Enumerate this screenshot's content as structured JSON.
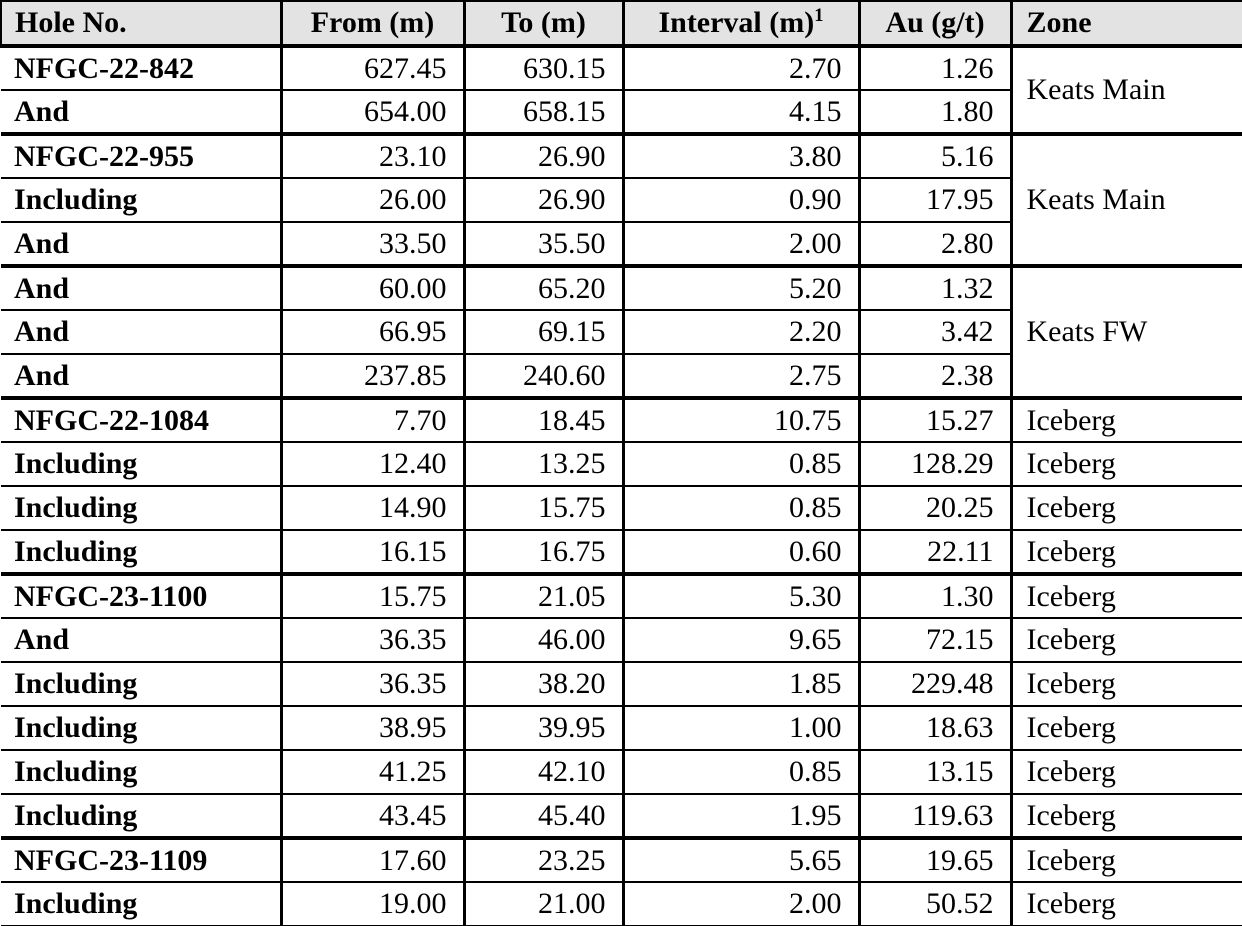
{
  "table": {
    "columns": [
      {
        "label": "Hole No."
      },
      {
        "label": "From (m)"
      },
      {
        "label": "To (m)"
      },
      {
        "label": "Interval (m)",
        "sup": "1"
      },
      {
        "label": "Au (g/t)"
      },
      {
        "label": "Zone"
      }
    ],
    "rows": [
      {
        "hole": "NFGC-22-842",
        "from": "627.45",
        "to": "630.15",
        "interval": "2.70",
        "au": "1.26",
        "zone": "Keats Main",
        "zone_span": 2,
        "group_end": false
      },
      {
        "hole": "And",
        "from": "654.00",
        "to": "658.15",
        "interval": "4.15",
        "au": "1.80",
        "group_end": true
      },
      {
        "hole": "NFGC-22-955",
        "from": "23.10",
        "to": "26.90",
        "interval": "3.80",
        "au": "5.16",
        "zone": "Keats Main",
        "zone_span": 3,
        "group_end": false
      },
      {
        "hole": "Including",
        "from": "26.00",
        "to": "26.90",
        "interval": "0.90",
        "au": "17.95",
        "group_end": false
      },
      {
        "hole": "And",
        "from": "33.50",
        "to": "35.50",
        "interval": "2.00",
        "au": "2.80",
        "group_end": true
      },
      {
        "hole": "And",
        "from": "60.00",
        "to": "65.20",
        "interval": "5.20",
        "au": "1.32",
        "zone": "Keats FW",
        "zone_span": 3,
        "group_end": false
      },
      {
        "hole": "And",
        "from": "66.95",
        "to": "69.15",
        "interval": "2.20",
        "au": "3.42",
        "group_end": false
      },
      {
        "hole": "And",
        "from": "237.85",
        "to": "240.60",
        "interval": "2.75",
        "au": "2.38",
        "group_end": true
      },
      {
        "hole": "NFGC-22-1084",
        "from": "7.70",
        "to": "18.45",
        "interval": "10.75",
        "au": "15.27",
        "zone": "Iceberg",
        "zone_span": 1,
        "group_end": false
      },
      {
        "hole": "Including",
        "from": "12.40",
        "to": "13.25",
        "interval": "0.85",
        "au": "128.29",
        "zone": "Iceberg",
        "zone_span": 1,
        "group_end": false
      },
      {
        "hole": "Including",
        "from": "14.90",
        "to": "15.75",
        "interval": "0.85",
        "au": "20.25",
        "zone": "Iceberg",
        "zone_span": 1,
        "group_end": false
      },
      {
        "hole": "Including",
        "from": "16.15",
        "to": "16.75",
        "interval": "0.60",
        "au": "22.11",
        "zone": "Iceberg",
        "zone_span": 1,
        "group_end": true
      },
      {
        "hole": "NFGC-23-1100",
        "from": "15.75",
        "to": "21.05",
        "interval": "5.30",
        "au": "1.30",
        "zone": "Iceberg",
        "zone_span": 1,
        "group_end": false
      },
      {
        "hole": "And",
        "from": "36.35",
        "to": "46.00",
        "interval": "9.65",
        "au": "72.15",
        "zone": "Iceberg",
        "zone_span": 1,
        "group_end": false
      },
      {
        "hole": "Including",
        "from": "36.35",
        "to": "38.20",
        "interval": "1.85",
        "au": "229.48",
        "zone": "Iceberg",
        "zone_span": 1,
        "group_end": false
      },
      {
        "hole": "Including",
        "from": "38.95",
        "to": "39.95",
        "interval": "1.00",
        "au": "18.63",
        "zone": "Iceberg",
        "zone_span": 1,
        "group_end": false
      },
      {
        "hole": "Including",
        "from": "41.25",
        "to": "42.10",
        "interval": "0.85",
        "au": "13.15",
        "zone": "Iceberg",
        "zone_span": 1,
        "group_end": false
      },
      {
        "hole": "Including",
        "from": "43.45",
        "to": "45.40",
        "interval": "1.95",
        "au": "119.63",
        "zone": "Iceberg",
        "zone_span": 1,
        "group_end": true
      },
      {
        "hole": "NFGC-23-1109",
        "from": "17.60",
        "to": "23.25",
        "interval": "5.65",
        "au": "19.65",
        "zone": "Iceberg",
        "zone_span": 1,
        "group_end": false
      },
      {
        "hole": "Including",
        "from": "19.00",
        "to": "21.00",
        "interval": "2.00",
        "au": "50.52",
        "zone": "Iceberg",
        "zone_span": 1,
        "group_end": false
      }
    ],
    "colors": {
      "header_bg": "#e3e3e3",
      "border": "#000000",
      "text": "#000000"
    }
  }
}
